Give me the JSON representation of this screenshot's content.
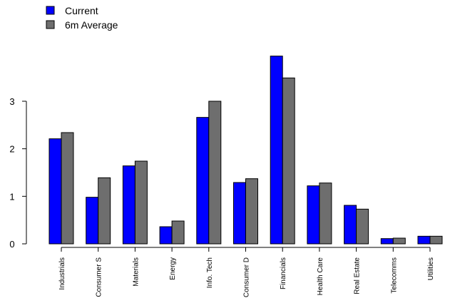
{
  "chart_data": {
    "type": "bar",
    "categories": [
      "Industrials",
      "Consumer S",
      "Materials",
      "Energy",
      "Info. Tech",
      "Consumer D",
      "Financials",
      "Health Care",
      "Real Estate",
      "Telecomms",
      "Utilities"
    ],
    "series": [
      {
        "name": "Current",
        "color": "#0000ff",
        "values": [
          2.21,
          0.98,
          1.64,
          0.36,
          2.66,
          1.29,
          3.95,
          1.22,
          0.81,
          0.11,
          0.16
        ]
      },
      {
        "name": "6m Average",
        "color": "#6e6e6e",
        "values": [
          2.34,
          1.39,
          1.74,
          0.48,
          3.0,
          1.37,
          3.49,
          1.28,
          0.73,
          0.12,
          0.16
        ]
      }
    ],
    "y_ticks": [
      "0",
      "1",
      "2",
      "3"
    ],
    "ylim": [
      0,
      4
    ],
    "grid": false,
    "legend_position": "top-left",
    "title": "",
    "xlabel": "",
    "ylabel": ""
  }
}
